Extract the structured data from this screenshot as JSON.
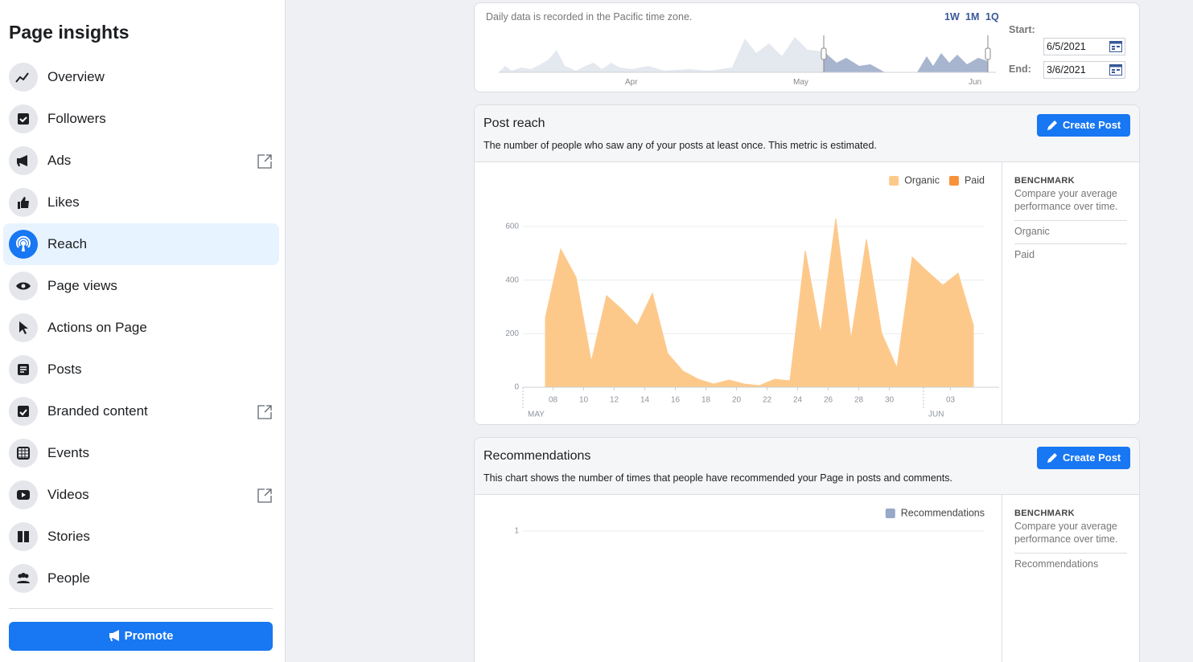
{
  "sidebar": {
    "title": "Page insights",
    "items": [
      "Overview",
      "Followers",
      "Ads",
      "Likes",
      "Reach",
      "Page views",
      "Actions on Page",
      "Posts",
      "Branded content",
      "Events",
      "Videos",
      "Stories",
      "People"
    ],
    "promote": "Promote"
  },
  "date_range": {
    "note": "Daily data is recorded in the Pacific time zone.",
    "presets": [
      "1W",
      "1M",
      "1Q"
    ],
    "months": [
      "Apr",
      "May",
      "Jun"
    ],
    "start_label": "Start:",
    "start": "6/5/2021",
    "end_label": "End:",
    "end": "3/6/2021"
  },
  "cards": [
    {
      "title": "Post reach",
      "description": "The number of people who saw any of your posts at least once. This metric is estimated.",
      "button": "Create Post",
      "benchmark": {
        "heading": "BENCHMARK",
        "text": "Compare your average performance over time.",
        "items": [
          "Organic",
          "Paid"
        ]
      }
    },
    {
      "title": "Recommendations",
      "description": "This chart shows the number of times that people have recommended your Page in posts and comments.",
      "button": "Create Post",
      "benchmark": {
        "heading": "BENCHMARK",
        "text": "Compare your average performance over time.",
        "items": [
          "Recommendations"
        ]
      }
    }
  ],
  "chart_data": [
    {
      "type": "area",
      "categories": [
        null,
        "08",
        null,
        "10",
        null,
        "12",
        null,
        "14",
        null,
        "16",
        null,
        "18",
        null,
        "20",
        null,
        "22",
        null,
        "24",
        null,
        "26",
        null,
        "28",
        null,
        "30",
        null,
        null,
        null,
        "03",
        null
      ],
      "x_group_labels": [
        "MAY",
        "JUN"
      ],
      "series": [
        {
          "name": "Organic",
          "color": "#fdc98b",
          "values": [
            261,
            516,
            411,
            96,
            342,
            291,
            231,
            351,
            126,
            60,
            30,
            12,
            27,
            12,
            6,
            30,
            24,
            510,
            201,
            630,
            180,
            552,
            201,
            72,
            486,
            432,
            381,
            426,
            231
          ]
        },
        {
          "name": "Paid",
          "color": "#f7923a",
          "values": [
            0,
            0,
            0,
            0,
            0,
            0,
            0,
            0,
            0,
            0,
            0,
            0,
            0,
            0,
            0,
            0,
            0,
            0,
            0,
            0,
            0,
            0,
            0,
            0,
            0,
            0,
            0,
            0,
            0
          ]
        }
      ],
      "ylim": [
        0,
        640
      ],
      "yticks": [
        0,
        200,
        400,
        600
      ],
      "grid": true,
      "legend": "top-right"
    },
    {
      "type": "area",
      "series": [
        {
          "name": "Recommendations",
          "color": "#98a9c7"
        }
      ],
      "ylim": [
        0,
        1
      ],
      "yticks": [
        1
      ],
      "grid": true,
      "legend": "top-right"
    }
  ]
}
